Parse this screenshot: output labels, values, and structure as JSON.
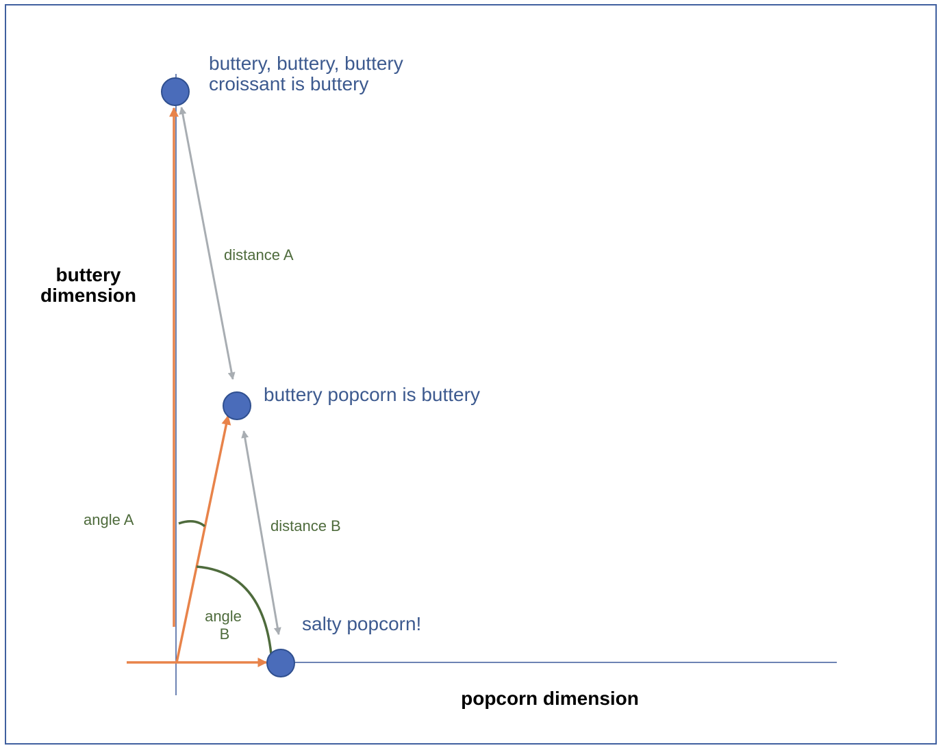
{
  "colors": {
    "frame": "#3f5f9f",
    "axis": "#3d5a9a",
    "point_fill": "#4a6cba",
    "point_stroke": "#2f4f8f",
    "vector": "#e8834a",
    "distance": "#a8adb2",
    "angle_arc": "#4e6b3c",
    "point_label": "#3d5a8f",
    "measure_label": "#4e6b3c",
    "axis_label": "#000000"
  },
  "axes": {
    "x_label": "popcorn dimension",
    "y_label_line1": "buttery",
    "y_label_line2": "dimension"
  },
  "points": {
    "croissant": {
      "label_line1": "buttery, buttery, buttery",
      "label_line2": "croissant is buttery"
    },
    "buttery_popcorn": {
      "label": "buttery popcorn is buttery"
    },
    "salty_popcorn": {
      "label": "salty popcorn!"
    }
  },
  "measures": {
    "distance_a": "distance A",
    "distance_b": "distance B",
    "angle_a": "angle A",
    "angle_b_line1": "angle",
    "angle_b_line2": "B"
  }
}
